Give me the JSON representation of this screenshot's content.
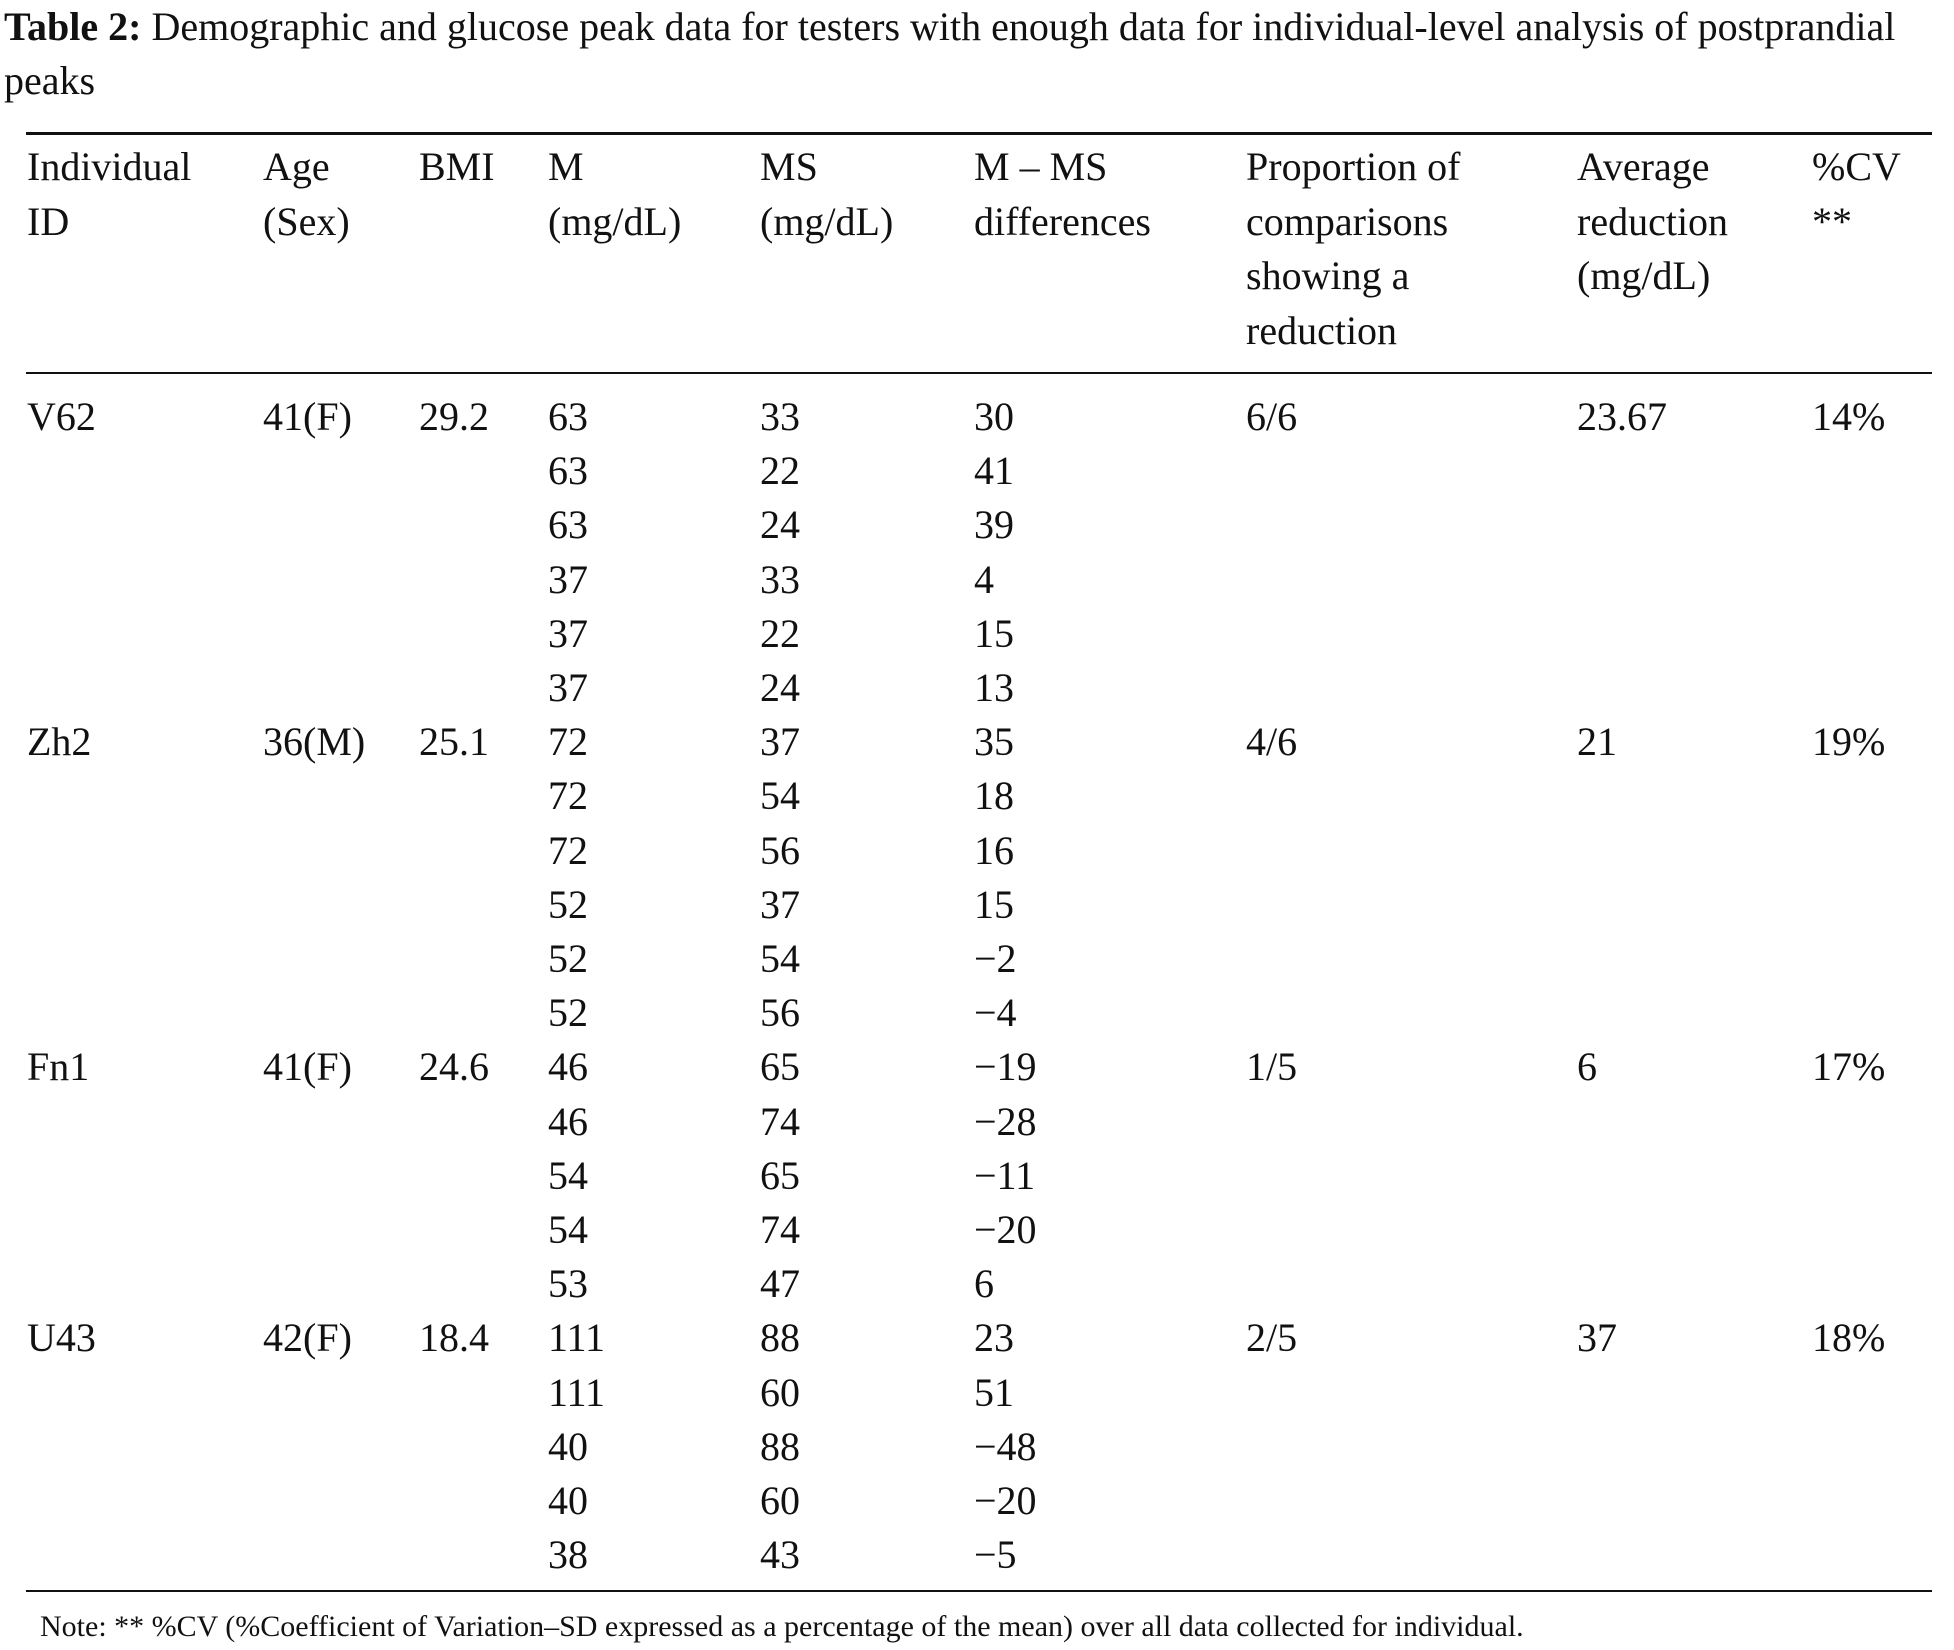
{
  "caption": {
    "label": "Table 2:",
    "text": "Demographic and glucose peak data for testers with enough data for individual-level analysis of postprandial peaks"
  },
  "headers": {
    "id": [
      "Individual",
      "ID"
    ],
    "age": [
      "Age",
      "(Sex)"
    ],
    "bmi": [
      "BMI"
    ],
    "m": [
      "M",
      "(mg/dL)"
    ],
    "ms": [
      "MS",
      "(mg/dL)"
    ],
    "diff": [
      "M – MS",
      "differences"
    ],
    "prop": [
      "Proportion of",
      "comparisons",
      "showing a",
      "reduction"
    ],
    "avg": [
      "Average",
      "reduction",
      "(mg/dL)"
    ],
    "cv": [
      "%CV",
      "**"
    ]
  },
  "rows": [
    {
      "id": "V62",
      "age": "41(F)",
      "bmi": "29.2",
      "m": "63",
      "ms": "33",
      "diff": "30",
      "prop": "6/6",
      "avg": "23.67",
      "cv": "14%"
    },
    {
      "id": "",
      "age": "",
      "bmi": "",
      "m": "63",
      "ms": "22",
      "diff": "41",
      "prop": "",
      "avg": "",
      "cv": ""
    },
    {
      "id": "",
      "age": "",
      "bmi": "",
      "m": "63",
      "ms": "24",
      "diff": "39",
      "prop": "",
      "avg": "",
      "cv": ""
    },
    {
      "id": "",
      "age": "",
      "bmi": "",
      "m": "37",
      "ms": "33",
      "diff": "4",
      "prop": "",
      "avg": "",
      "cv": ""
    },
    {
      "id": "",
      "age": "",
      "bmi": "",
      "m": "37",
      "ms": "22",
      "diff": "15",
      "prop": "",
      "avg": "",
      "cv": ""
    },
    {
      "id": "",
      "age": "",
      "bmi": "",
      "m": "37",
      "ms": "24",
      "diff": "13",
      "prop": "",
      "avg": "",
      "cv": ""
    },
    {
      "id": "Zh2",
      "age": "36(M)",
      "bmi": "25.1",
      "m": "72",
      "ms": "37",
      "diff": "35",
      "prop": "4/6",
      "avg": "21",
      "cv": "19%"
    },
    {
      "id": "",
      "age": "",
      "bmi": "",
      "m": "72",
      "ms": "54",
      "diff": "18",
      "prop": "",
      "avg": "",
      "cv": ""
    },
    {
      "id": "",
      "age": "",
      "bmi": "",
      "m": "72",
      "ms": "56",
      "diff": "16",
      "prop": "",
      "avg": "",
      "cv": ""
    },
    {
      "id": "",
      "age": "",
      "bmi": "",
      "m": "52",
      "ms": "37",
      "diff": "15",
      "prop": "",
      "avg": "",
      "cv": ""
    },
    {
      "id": "",
      "age": "",
      "bmi": "",
      "m": "52",
      "ms": "54",
      "diff": "−2",
      "prop": "",
      "avg": "",
      "cv": ""
    },
    {
      "id": "",
      "age": "",
      "bmi": "",
      "m": "52",
      "ms": "56",
      "diff": "−4",
      "prop": "",
      "avg": "",
      "cv": ""
    },
    {
      "id": "Fn1",
      "age": "41(F)",
      "bmi": "24.6",
      "m": "46",
      "ms": "65",
      "diff": "−19",
      "prop": "1/5",
      "avg": "6",
      "cv": "17%"
    },
    {
      "id": "",
      "age": "",
      "bmi": "",
      "m": "46",
      "ms": "74",
      "diff": "−28",
      "prop": "",
      "avg": "",
      "cv": ""
    },
    {
      "id": "",
      "age": "",
      "bmi": "",
      "m": "54",
      "ms": "65",
      "diff": "−11",
      "prop": "",
      "avg": "",
      "cv": ""
    },
    {
      "id": "",
      "age": "",
      "bmi": "",
      "m": "54",
      "ms": "74",
      "diff": "−20",
      "prop": "",
      "avg": "",
      "cv": ""
    },
    {
      "id": "",
      "age": "",
      "bmi": "",
      "m": "53",
      "ms": "47",
      "diff": "6",
      "prop": "",
      "avg": "",
      "cv": ""
    },
    {
      "id": "U43",
      "age": "42(F)",
      "bmi": "18.4",
      "m": "111",
      "ms": "88",
      "diff": "23",
      "prop": "2/5",
      "avg": "37",
      "cv": "18%"
    },
    {
      "id": "",
      "age": "",
      "bmi": "",
      "m": "111",
      "ms": "60",
      "diff": "51",
      "prop": "",
      "avg": "",
      "cv": ""
    },
    {
      "id": "",
      "age": "",
      "bmi": "",
      "m": "40",
      "ms": "88",
      "diff": "−48",
      "prop": "",
      "avg": "",
      "cv": ""
    },
    {
      "id": "",
      "age": "",
      "bmi": "",
      "m": "40",
      "ms": "60",
      "diff": "−20",
      "prop": "",
      "avg": "",
      "cv": ""
    },
    {
      "id": "",
      "age": "",
      "bmi": "",
      "m": "38",
      "ms": "43",
      "diff": "−5",
      "prop": "",
      "avg": "",
      "cv": ""
    }
  ],
  "note": "Note: ** %CV (%Coefficient of Variation–SD expressed as a percentage of the mean) over all data collected for individual."
}
